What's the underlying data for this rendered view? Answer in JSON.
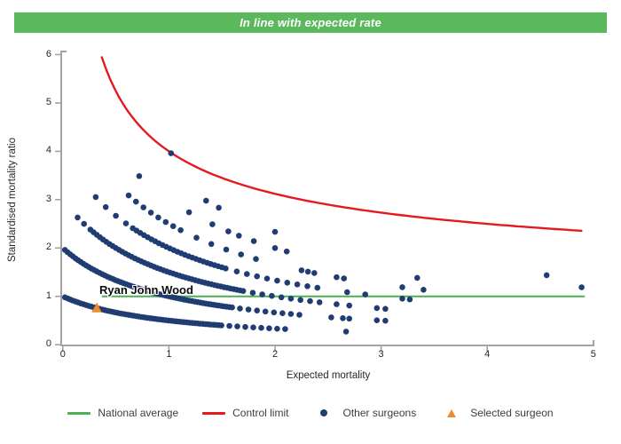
{
  "banner": {
    "title": "In line with expected rate",
    "bg_color": "#5cb85c"
  },
  "chart_data": {
    "type": "scatter",
    "xlabel": "Expected mortality",
    "ylabel": "Standardised mortality ratio",
    "xlim": [
      0,
      5
    ],
    "ylim": [
      0,
      6
    ],
    "x_ticks": [
      0,
      1,
      2,
      3,
      4,
      5
    ],
    "y_ticks": [
      0,
      1,
      2,
      3,
      4,
      5,
      6
    ],
    "grid": "off",
    "national_average": {
      "label": "National average",
      "value": 1,
      "x_range": [
        0.368,
        4.92
      ],
      "color": "#4caf50"
    },
    "control_limit": {
      "label": "Control limit",
      "formula": "SMR = 1 + 3/sqrt(E)",
      "x_range": [
        0.368,
        4.92
      ],
      "end_points": [
        [
          0.368,
          6.0
        ],
        [
          1.0,
          4.0
        ],
        [
          2.0,
          3.12
        ],
        [
          3.0,
          2.73
        ],
        [
          4.0,
          2.5
        ],
        [
          4.92,
          2.35
        ]
      ],
      "color": "#e41b1e"
    },
    "selected_surgeon": {
      "label": "Selected surgeon",
      "name": "Ryan John Wood",
      "expected_mortality": 0.32,
      "smr": 0.76,
      "color": "#ef8b2f"
    },
    "other_surgeons": {
      "label": "Other surgeons",
      "color": "#1f3d73",
      "model": "SMR = k/(1+E); bands of surgeons with equal observed deaths k; segments are [E_start, E_end, E_step]",
      "bands": [
        {
          "k": 1,
          "segments": [
            [
              0.02,
              1.5,
              0.025
            ],
            [
              1.57,
              2.1,
              0.075
            ]
          ],
          "singles": [
            2.67
          ]
        },
        {
          "k": 2,
          "segments": [
            [
              0.02,
              1.6,
              0.025
            ],
            [
              1.67,
              2.28,
              0.08
            ]
          ],
          "singles": [
            2.53,
            2.64,
            2.7,
            2.96,
            3.04
          ]
        },
        {
          "k": 3,
          "segments": [
            [
              0.14,
              0.2,
              0.06
            ],
            [
              0.26,
              1.7,
              0.03
            ],
            [
              1.79,
              2.42,
              0.09
            ]
          ],
          "singles": [
            2.58,
            2.7,
            2.96,
            3.04
          ]
        },
        {
          "k": 4,
          "segments": [
            [
              0.31,
              0.6,
              0.095
            ],
            [
              0.66,
              1.55,
              0.035
            ],
            [
              1.64,
              2.4,
              0.095
            ]
          ],
          "singles": [
            2.68,
            2.85,
            3.2,
            3.27
          ]
        },
        {
          "k": 5,
          "segments": [
            [
              0.62,
              1.12,
              0.07
            ],
            [
              1.26,
              1.82,
              0.14
            ]
          ],
          "singles": [
            2.25,
            2.31,
            2.37,
            2.58,
            2.65,
            3.2,
            3.4
          ]
        },
        {
          "k": 6,
          "segments": [],
          "singles": [
            0.72,
            1.19,
            1.41,
            1.56,
            1.66,
            1.8,
            2.0,
            2.11,
            3.34
          ]
        },
        {
          "k": 7,
          "segments": [],
          "singles": [
            1.35,
            1.47,
            2.0,
            4.89
          ]
        },
        {
          "k": 8,
          "segments": [],
          "singles": [
            1.02,
            4.56
          ]
        }
      ]
    }
  },
  "legend": {
    "items": [
      {
        "label": "National average",
        "type": "line",
        "color": "#4caf50"
      },
      {
        "label": "Control limit",
        "type": "line",
        "color": "#e41b1e"
      },
      {
        "label": "Other surgeons",
        "type": "dot",
        "color": "#1f3d73"
      },
      {
        "label": "Selected surgeon",
        "type": "triangle",
        "color": "#ef8b2f"
      }
    ]
  }
}
